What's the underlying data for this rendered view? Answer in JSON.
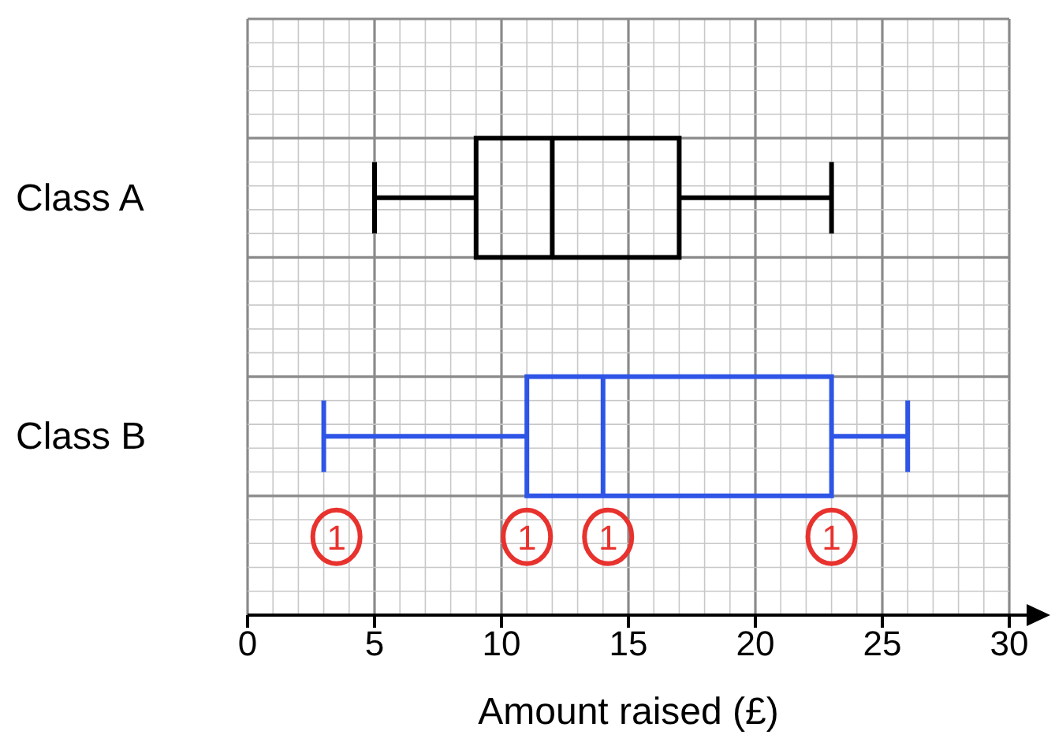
{
  "chart_data": {
    "type": "box",
    "orientation": "horizontal",
    "categories": [
      "Class A",
      "Class B"
    ],
    "boxes": [
      {
        "low": 5,
        "q1": 9,
        "median": 12,
        "q3": 17,
        "high": 23
      },
      {
        "low": 3,
        "q1": 11,
        "median": 14,
        "q3": 23,
        "high": 26
      }
    ],
    "colors": [
      "#000000",
      "#2e55e6"
    ],
    "xlabel": "Amount raised (£)",
    "xlim": [
      0,
      30
    ],
    "xticks": [
      0,
      5,
      10,
      15,
      20,
      25,
      30
    ],
    "grid": true,
    "annotations": [
      {
        "text": "1",
        "x": 3.5
      },
      {
        "text": "1",
        "x": 11
      },
      {
        "text": "1",
        "x": 14.2
      },
      {
        "text": "1",
        "x": 23
      }
    ]
  }
}
